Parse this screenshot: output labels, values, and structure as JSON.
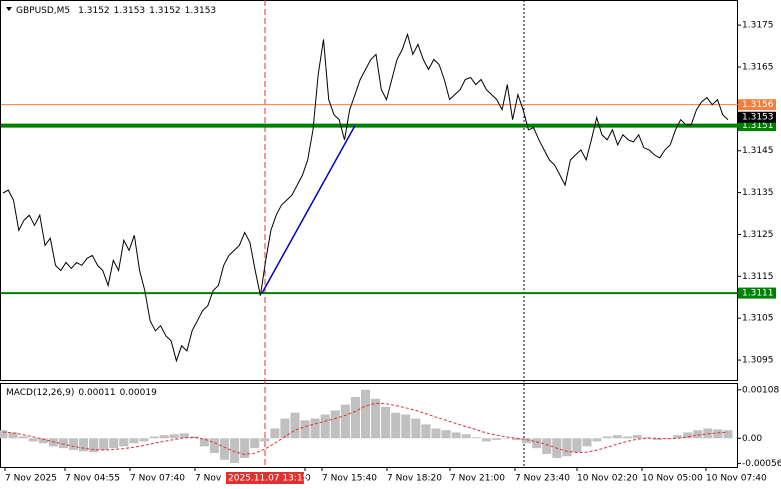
{
  "chart_data": [
    {
      "type": "line",
      "symbol": "GBPUSD,M5",
      "ohlc": [
        1.3152,
        1.3153,
        1.3152,
        1.3153
      ],
      "color": "#000000",
      "ylim": [
        1.309,
        1.3181
      ],
      "yticks": [
        1.3175,
        1.3165,
        1.3145,
        1.3135,
        1.3125,
        1.3115,
        1.3105,
        1.3095
      ],
      "values": [
        1.31349,
        1.31356,
        1.31332,
        1.3126,
        1.31284,
        1.31296,
        1.31272,
        1.31296,
        1.31224,
        1.31241,
        1.31176,
        1.31164,
        1.31183,
        1.31169,
        1.31183,
        1.31176,
        1.31193,
        1.312,
        1.31176,
        1.31164,
        1.31128,
        1.31188,
        1.31164,
        1.31236,
        1.31212,
        1.31248,
        1.31164,
        1.31116,
        1.31044,
        1.3102,
        1.31032,
        1.31008,
        1.30996,
        1.30948,
        1.30984,
        1.30972,
        1.3102,
        1.31044,
        1.31068,
        1.3108,
        1.31116,
        1.31128,
        1.31176,
        1.312,
        1.31212,
        1.31224,
        1.31255,
        1.31231,
        1.31164,
        1.31104,
        1.31188,
        1.3126,
        1.31296,
        1.3132,
        1.31332,
        1.31344,
        1.31368,
        1.31392,
        1.31428,
        1.315,
        1.31632,
        1.31716,
        1.31572,
        1.31536,
        1.31524,
        1.31476,
        1.31548,
        1.31584,
        1.3162,
        1.31644,
        1.31668,
        1.3168,
        1.31596,
        1.31572,
        1.3162,
        1.31668,
        1.31692,
        1.31728,
        1.3168,
        1.31704,
        1.31668,
        1.31644,
        1.31668,
        1.31656,
        1.3162,
        1.31572,
        1.31584,
        1.31596,
        1.3162,
        1.31625,
        1.31608,
        1.3162,
        1.31596,
        1.31584,
        1.31572,
        1.31548,
        1.31608,
        1.31524,
        1.31584,
        1.31548,
        1.315,
        1.31505,
        1.31476,
        1.31452,
        1.31428,
        1.31416,
        1.31392,
        1.31368,
        1.31428,
        1.3144,
        1.31452,
        1.31428,
        1.31476,
        1.31529,
        1.31488,
        1.31476,
        1.315,
        1.31464,
        1.31488,
        1.31476,
        1.31471,
        1.31488,
        1.31457,
        1.31452,
        1.3144,
        1.31433,
        1.31452,
        1.31464,
        1.315,
        1.31524,
        1.31512,
        1.31512,
        1.31548,
        1.31567,
        1.31577,
        1.3156,
        1.31572,
        1.31536,
        1.31524
      ],
      "levels": [
        {
          "value": 1.3156,
          "color": "#f08040",
          "width": 1
        },
        {
          "value": 1.3151,
          "color": "#008000",
          "width": 4
        },
        {
          "value": 1.3111,
          "color": "#008000",
          "width": 2
        }
      ],
      "current_price": 1.3153,
      "trendline": {
        "from": 1.3111,
        "to": 1.3151,
        "color": "#0000cc"
      },
      "time_labels": [
        "7 Nov 2025",
        "7 Nov 04:55",
        "7 Nov 07:40",
        "7 Nov",
        "0",
        "7 Nov 15:40",
        "7 Nov 18:20",
        "7 Nov 21:00",
        "7 Nov 23:40",
        "10 Nov 02:20",
        "10 Nov 05:00",
        "10 Nov 07:40"
      ],
      "cursor_label": "2025.11.07 13:15"
    },
    {
      "type": "macd",
      "name": "MACD(12,26,9)",
      "readings": [
        0.00011,
        0.00019
      ],
      "ylim": [
        -0.00064,
        0.00121
      ],
      "yticks": [
        0.00108,
        {
          "value": 0,
          "label": "0.00"
        },
        -0.00056
      ],
      "histogram_color": "#c0c0c0",
      "signal_color": "#e03030",
      "histogram": [
        0.00018,
        0.00013,
        4e-05,
        -7e-05,
        -0.00011,
        -0.00018,
        -0.00022,
        -0.00026,
        -0.00029,
        -0.00031,
        -0.00026,
        -0.00022,
        -0.00018,
        -0.00011,
        -7e-05,
        4e-05,
        7e-05,
        9e-05,
        0.00011,
        4e-05,
        -0.00018,
        -0.00033,
        -0.00048,
        -0.00055,
        -0.00044,
        -0.00022,
        -7e-05,
        0.00022,
        0.00044,
        0.00057,
        0.0004,
        0.00044,
        0.00053,
        0.00062,
        0.00075,
        0.00092,
        0.00108,
        0.00088,
        0.0007,
        0.00057,
        0.00053,
        0.00044,
        0.00031,
        0.00022,
        0.00018,
        0.00013,
        9e-05,
        2e-05,
        -7e-05,
        -4e-05,
        0,
        -4e-05,
        -0.00011,
        -0.00022,
        -0.00035,
        -0.00044,
        -0.0004,
        -0.00031,
        -0.00018,
        -7e-05,
        4e-05,
        7e-05,
        4e-05,
        7e-05,
        2e-05,
        -4e-05,
        -2e-05,
        7e-05,
        0.00013,
        0.00018,
        0.00022,
        0.0002,
        0.00018
      ],
      "signal": [
        0.00014,
        0.00012,
        8e-05,
        3e-05,
        -2e-05,
        -8e-05,
        -0.00013,
        -0.00018,
        -0.00022,
        -0.00025,
        -0.00026,
        -0.00025,
        -0.00023,
        -0.0002,
        -0.00016,
        -0.00011,
        -7e-05,
        -3e-05,
        1e-05,
        2e-05,
        -2e-05,
        -0.0001,
        -0.0002,
        -0.0003,
        -0.00036,
        -0.00033,
        -0.00024,
        -0.00011,
        4e-05,
        0.00018,
        0.00026,
        0.00032,
        0.00038,
        0.00044,
        0.00051,
        0.0006,
        0.00072,
        0.00078,
        0.00077,
        0.00073,
        0.00068,
        0.00062,
        0.00055,
        0.00047,
        0.0004,
        0.00033,
        0.00026,
        0.00019,
        0.00012,
        7e-05,
        3e-05,
        0,
        -3e-05,
        -8e-05,
        -0.00014,
        -0.00022,
        -0.00029,
        -0.00032,
        -0.00031,
        -0.00026,
        -0.0002,
        -0.00013,
        -7e-05,
        -2e-05,
        0,
        0,
        -1e-05,
        0,
        3e-05,
        7e-05,
        0.0001,
        0.00012,
        0.00014
      ]
    }
  ]
}
